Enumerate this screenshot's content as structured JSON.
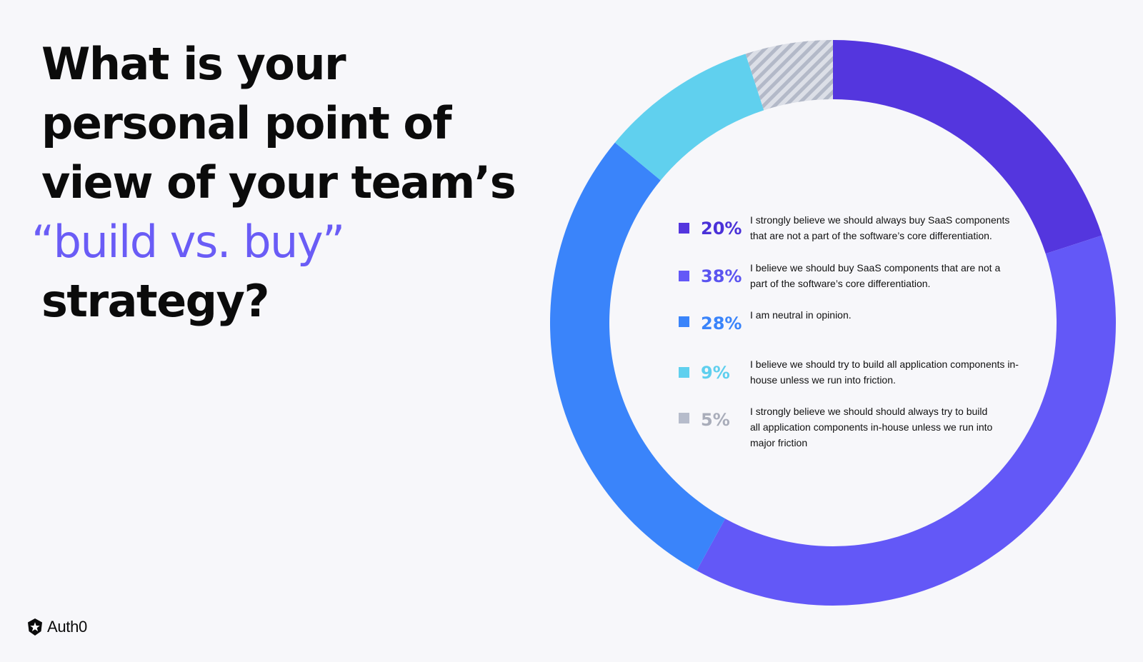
{
  "headline": {
    "line1": "What is your",
    "line2": "personal point of",
    "line3": "view of your team’s",
    "accent": "“build vs. buy”",
    "line5": "strategy?"
  },
  "chart_data": {
    "type": "pie",
    "style": "donut",
    "title": "",
    "categories": [
      "I strongly believe we should always buy SaaS components that are not a part of the software’s core differentiation.",
      "I believe we should buy SaaS components that are not a part of the software’s core differentiation.",
      "I am neutral in opinion.",
      "I believe we should try to build all application components in-house unless we run into  friction.",
      "I strongly believe we should should always try to build all application components in-house unless we run into major friction"
    ],
    "labels": [
      "20%",
      "38%",
      "28%",
      "9%",
      "5%"
    ],
    "values": [
      20,
      38,
      28,
      9,
      5
    ],
    "colors": [
      "#5436de",
      "#6358f7",
      "#3a84fa",
      "#60d0ee",
      "#b6bccb"
    ],
    "label_colors": [
      "#4a31d8",
      "#5b54f0",
      "#3a84fa",
      "#5fcfee",
      "#a9adba"
    ],
    "hatched": [
      false,
      false,
      false,
      false,
      true
    ],
    "legend": "center"
  },
  "brand": {
    "name": "Auth0",
    "icon": "auth0-star-shield-icon"
  }
}
